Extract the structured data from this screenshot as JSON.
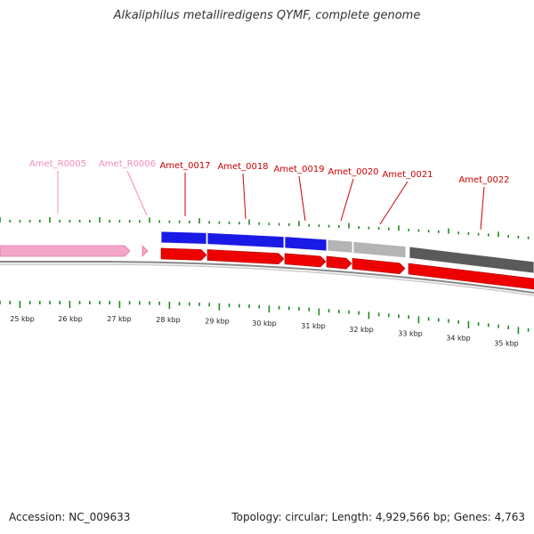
{
  "title": "Alkaliphilus metalliredigens QYMF, complete genome",
  "footer": {
    "accession": "Accession: NC_009633",
    "summary": "Topology: circular; Length: 4,929,566 bp; Genes: 4,763"
  },
  "colors": {
    "rna": "#f4a6c8",
    "rna_label": "#f08cb8",
    "cds": "#ee0000",
    "gene_label": "#cc0000",
    "cog_blue": "#1a1ae6",
    "cog_gray": "#b4b4b4",
    "cog_dark": "#5a5a5a",
    "tick": "#228822",
    "backbone": "#888888"
  },
  "gene_labels": [
    {
      "name": "Amet_R0005",
      "type": "rna"
    },
    {
      "name": "Amet_R0006",
      "type": "rna"
    },
    {
      "name": "Amet_0017",
      "type": "cds"
    },
    {
      "name": "Amet_0018",
      "type": "cds"
    },
    {
      "name": "Amet_0019",
      "type": "cds"
    },
    {
      "name": "Amet_0020",
      "type": "cds"
    },
    {
      "name": "Amet_0021",
      "type": "cds"
    },
    {
      "name": "Amet_0022",
      "type": "cds"
    }
  ],
  "kbp_labels": [
    "25 kbp",
    "26 kbp",
    "27 kbp",
    "28 kbp",
    "29 kbp",
    "30 kbp",
    "31 kbp",
    "32 kbp",
    "33 kbp",
    "34 kbp",
    "35 kbp"
  ]
}
